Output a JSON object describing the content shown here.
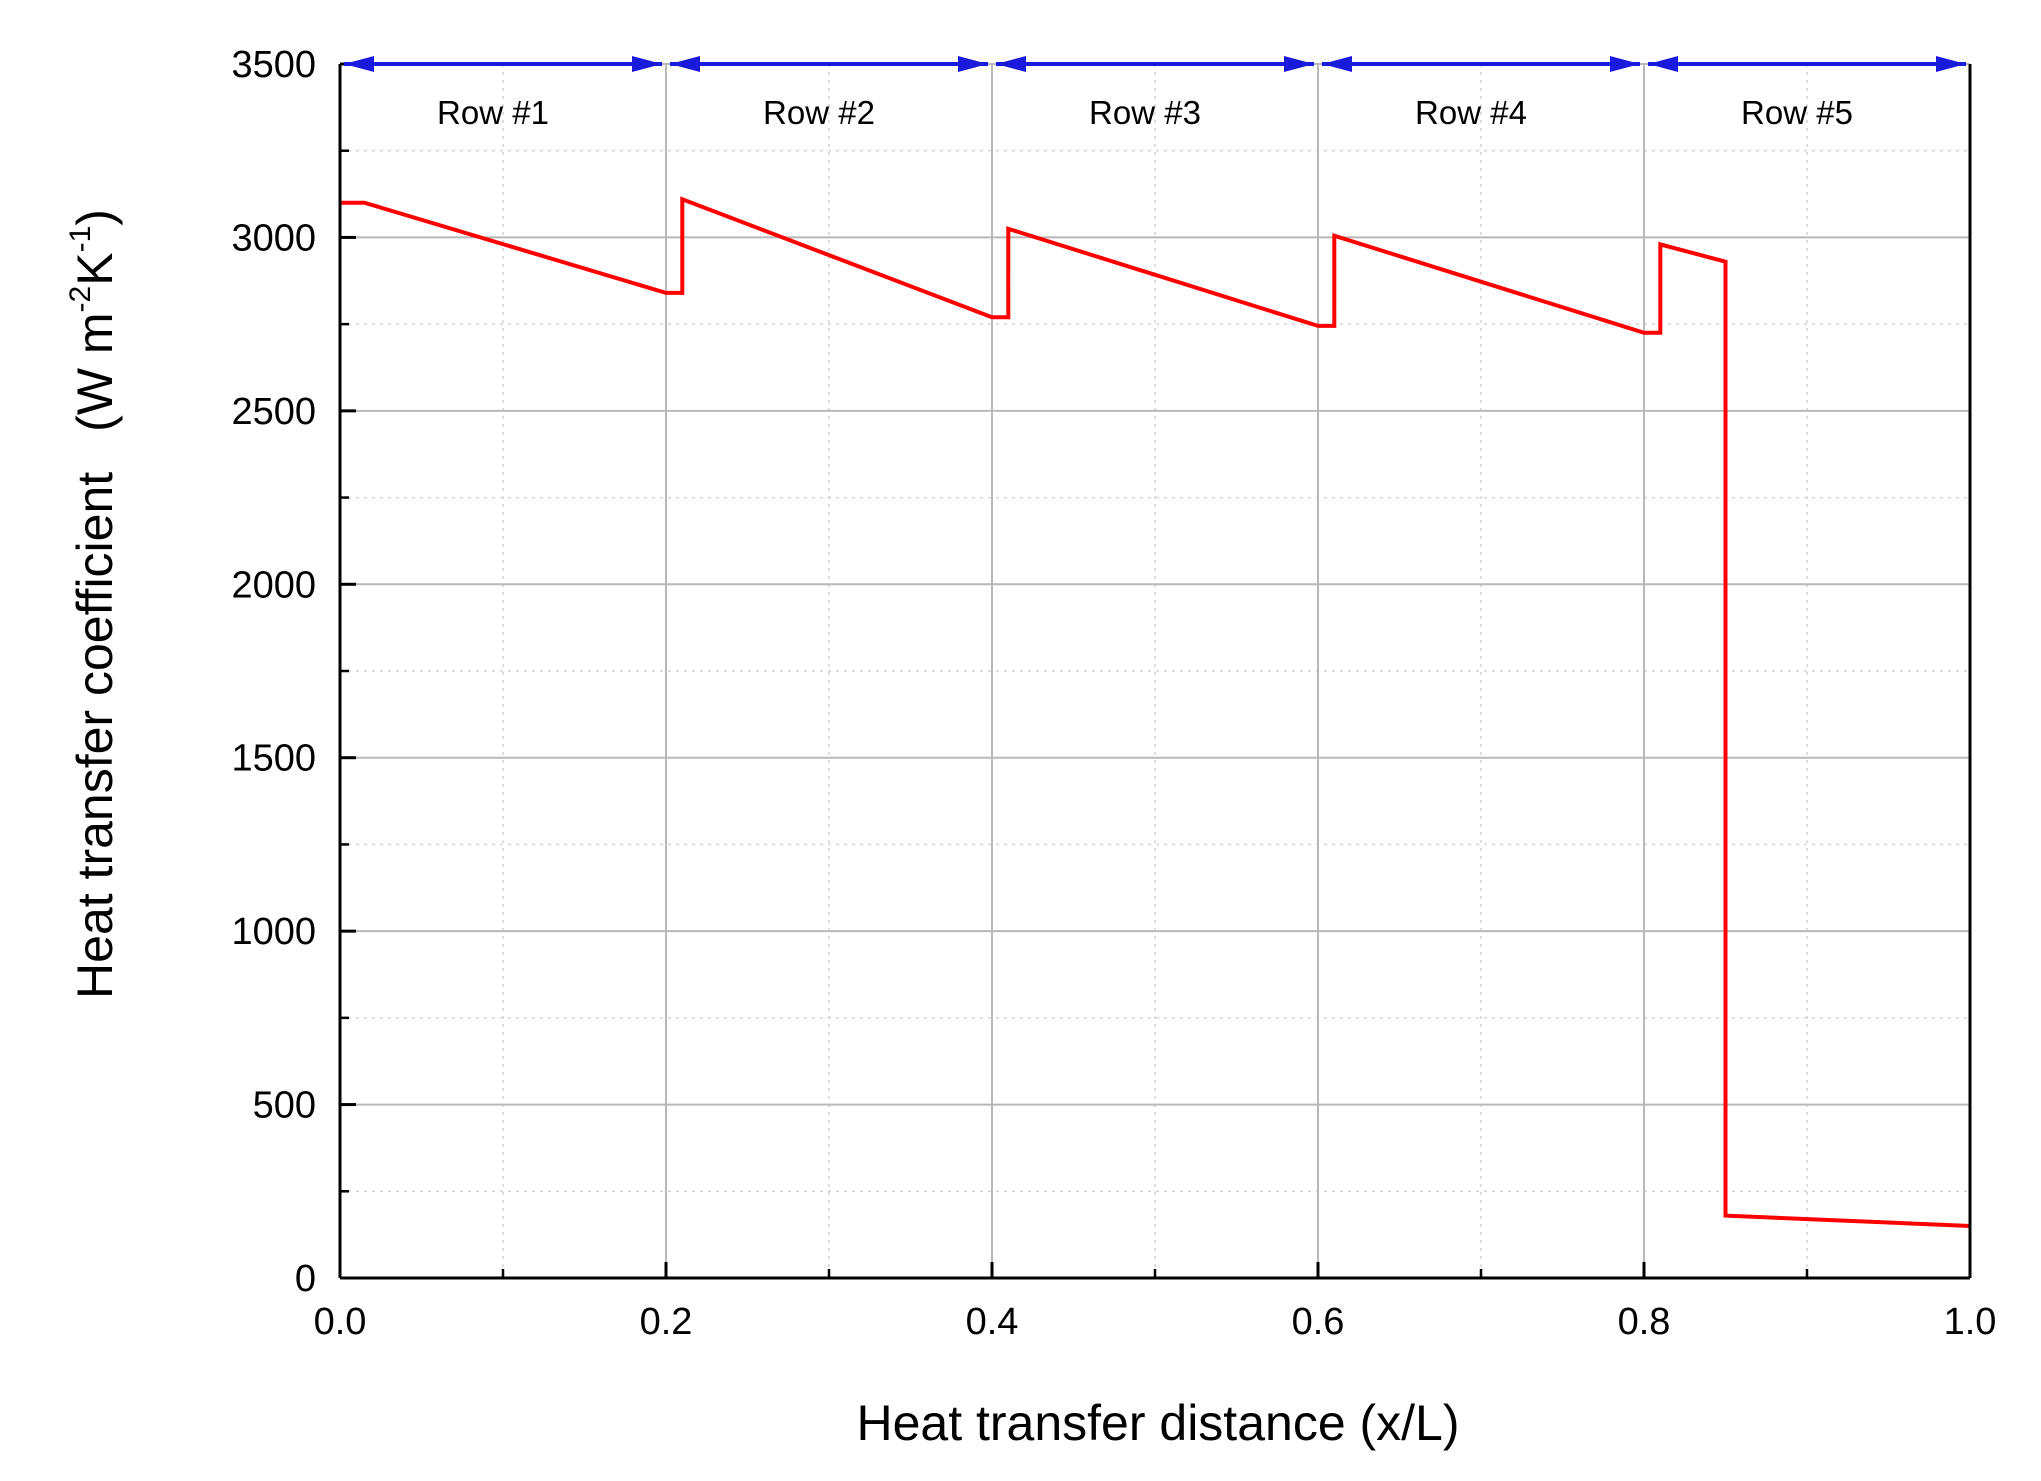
{
  "chart_data": {
    "type": "line",
    "title": "",
    "xlabel": "Heat transfer distance (x/L)",
    "ylabel": {
      "main": "Heat transfer coefficient",
      "unit_open": "(W m",
      "unit_exp1": "-2",
      "unit_mid": "K",
      "unit_exp2": "-1",
      "unit_close": ")"
    },
    "xlim": [
      0.0,
      1.0
    ],
    "ylim": [
      0,
      3500
    ],
    "x_ticks": [
      0.0,
      0.2,
      0.4,
      0.6,
      0.8,
      1.0
    ],
    "x_tick_labels": [
      "0.0",
      "0.2",
      "0.4",
      "0.6",
      "0.8",
      "1.0"
    ],
    "y_ticks": [
      0,
      500,
      1000,
      1500,
      2000,
      2500,
      3000,
      3500
    ],
    "y_tick_labels": [
      "0",
      "500",
      "1000",
      "1500",
      "2000",
      "2500",
      "3000",
      "3500"
    ],
    "grid": true,
    "legend": "none",
    "colors": {
      "series": "#ff0000",
      "row_arrows": "#1a1adc",
      "grid_major": "#b8b8b8",
      "grid_minor": "#d4d4d4",
      "axis": "#000000"
    },
    "row_spans": [
      {
        "label": "Row #1",
        "x_start": 0.0,
        "x_end": 0.2
      },
      {
        "label": "Row #2",
        "x_start": 0.2,
        "x_end": 0.4
      },
      {
        "label": "Row #3",
        "x_start": 0.4,
        "x_end": 0.6
      },
      {
        "label": "Row #4",
        "x_start": 0.6,
        "x_end": 0.8
      },
      {
        "label": "Row #5",
        "x_start": 0.8,
        "x_end": 1.0
      }
    ],
    "series": [
      {
        "x": [
          0.0,
          0.015,
          0.2,
          0.2,
          0.21,
          0.21,
          0.4,
          0.4,
          0.41,
          0.41,
          0.6,
          0.6,
          0.61,
          0.61,
          0.8,
          0.8,
          0.81,
          0.81,
          0.85,
          0.85,
          1.0
        ],
        "y": [
          3100,
          3100,
          2840,
          2840,
          2840,
          3110,
          2770,
          2770,
          2770,
          3025,
          2745,
          2745,
          2745,
          3005,
          2725,
          2725,
          2725,
          2980,
          2930,
          180,
          150
        ]
      }
    ]
  }
}
